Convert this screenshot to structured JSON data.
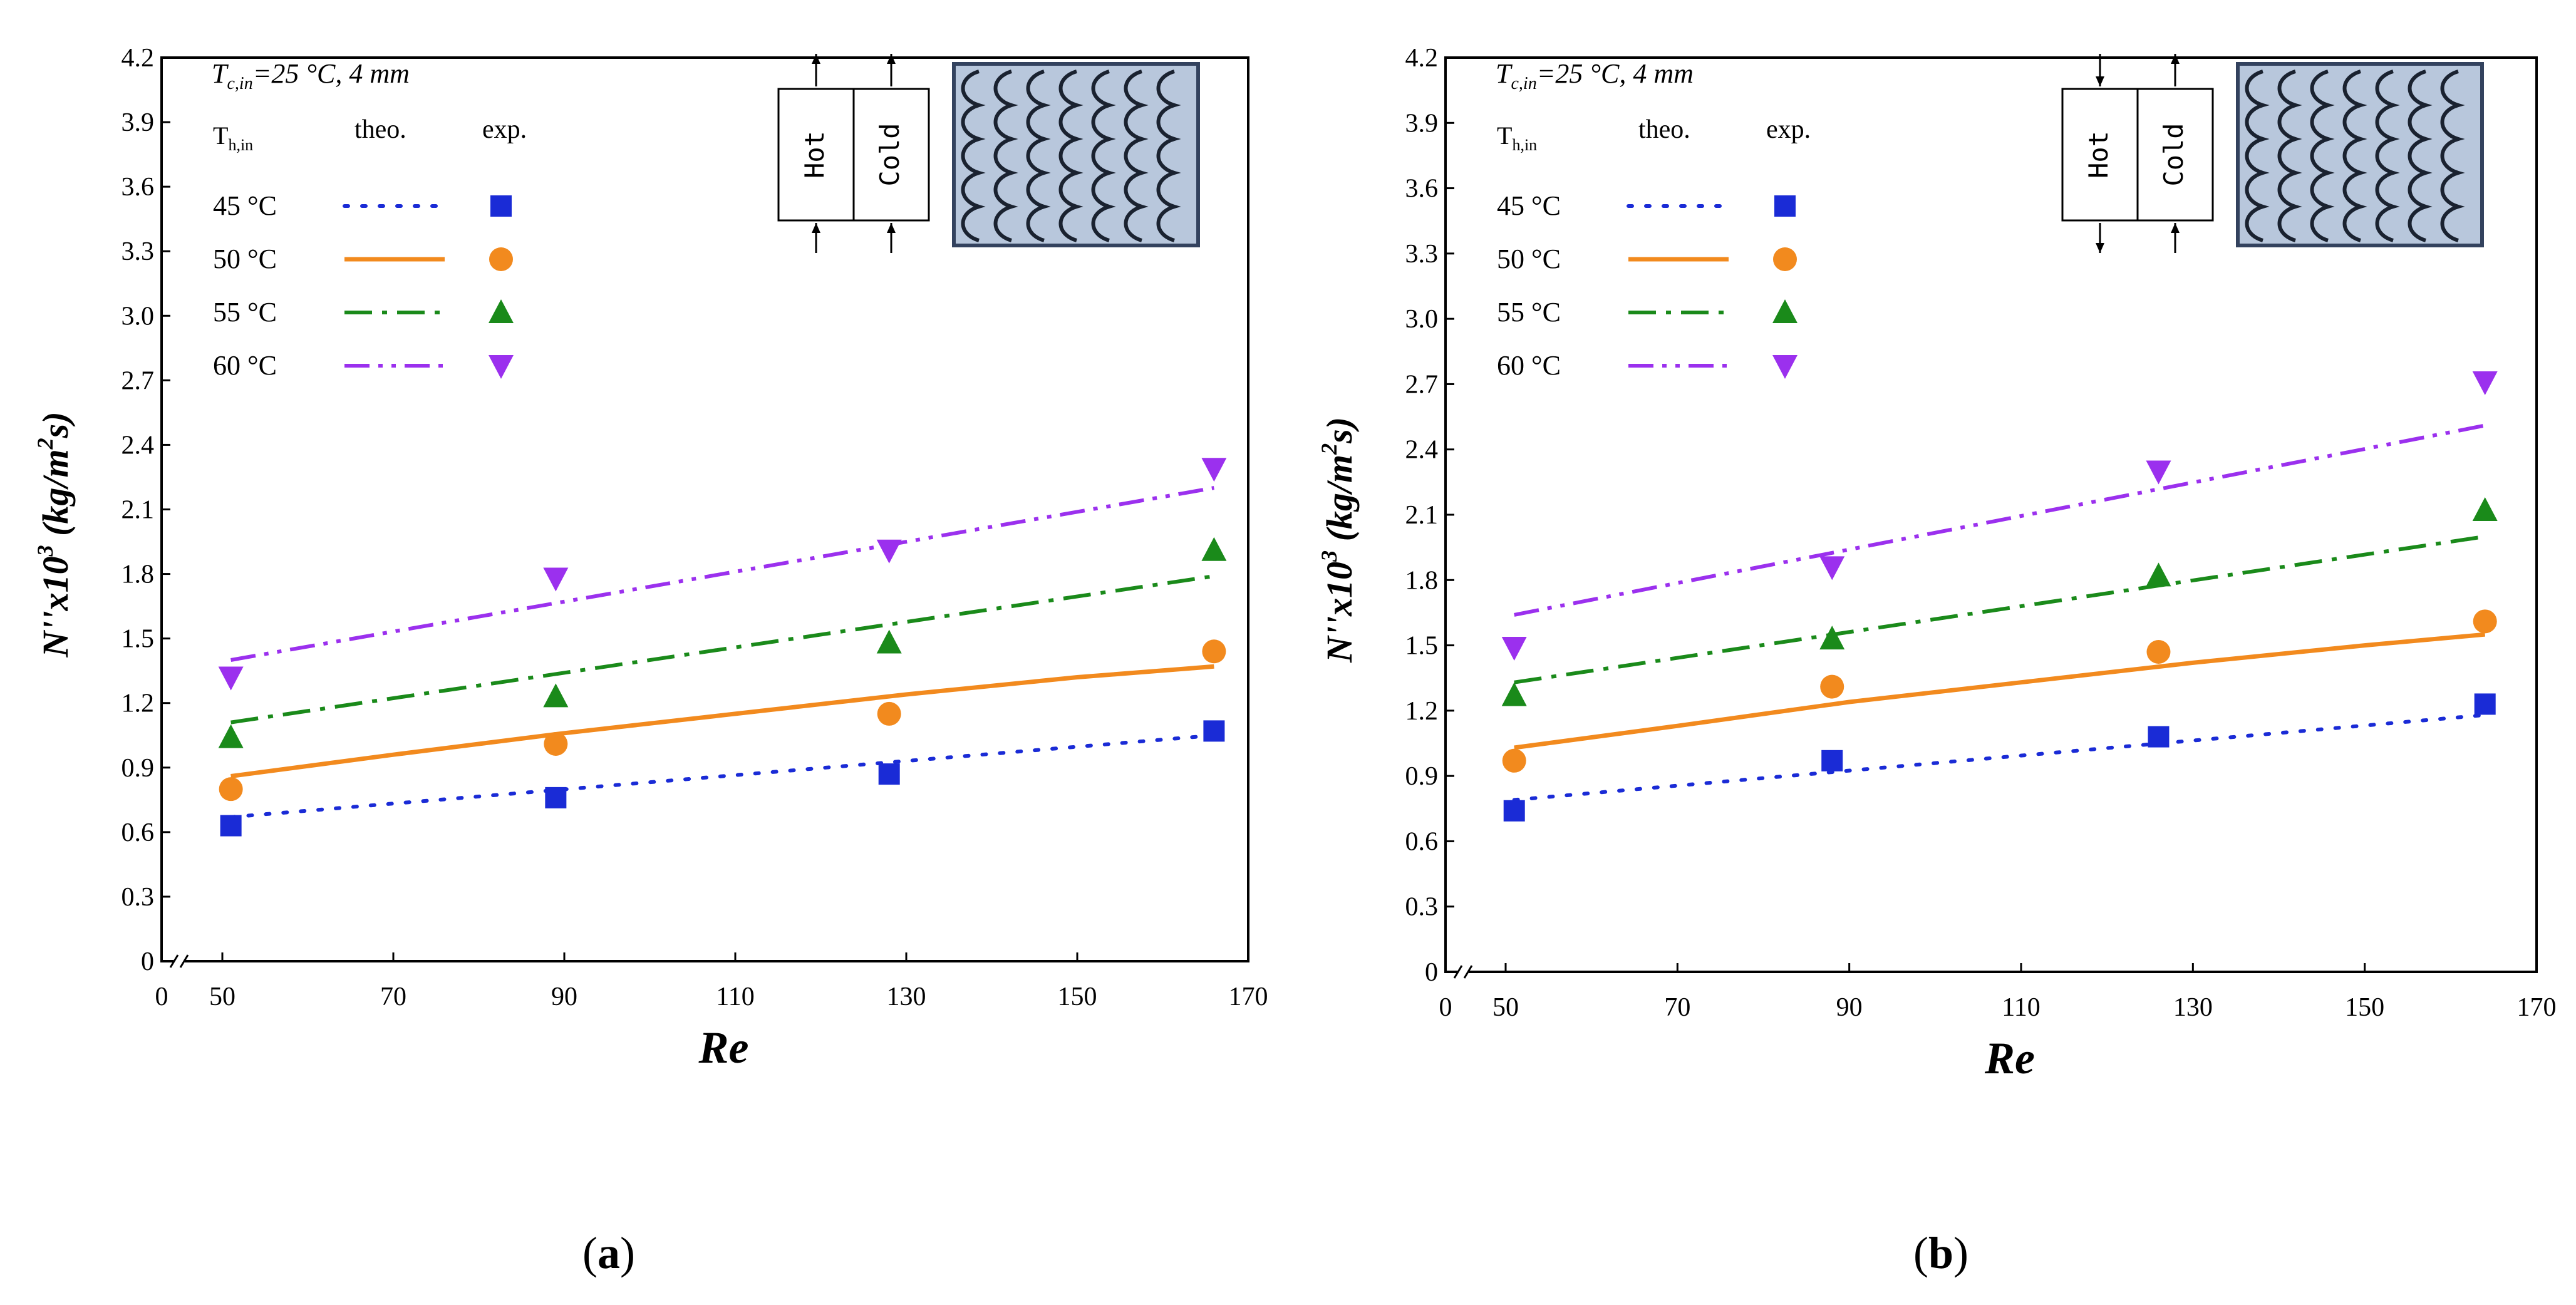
{
  "chart_data": [
    {
      "type": "line",
      "panel": "(a)",
      "caption_open": "(",
      "caption_letter": "a",
      "caption_close": ")",
      "annotation": "Tc,in=25 °C, 4 mm",
      "annotation_main": "T",
      "annotation_sub": "c,in",
      "annotation_rest": "=25 °C, 4 mm",
      "xlabel": "Re",
      "ylabel_main": "N''x10",
      "ylabel_sup": "3",
      "ylabel_unit_a": " (kg/m",
      "ylabel_unit_sup": "2",
      "ylabel_unit_b": "s)",
      "ylim": [
        0,
        4.2
      ],
      "xlim": [
        0,
        170
      ],
      "xbreak": "0 to 50",
      "xticks": [
        50,
        70,
        90,
        110,
        130,
        150,
        170
      ],
      "yticks": [
        0.3,
        0.6,
        0.9,
        1.2,
        1.5,
        1.8,
        2.1,
        2.4,
        2.7,
        3.0,
        3.3,
        3.6,
        3.9,
        4.2
      ],
      "ytick_labels": [
        "0.3",
        "0.6",
        "0.9",
        "1.2",
        "1.5",
        "1.8",
        "2.1",
        "2.4",
        "2.7",
        "3.0",
        "3.3",
        "3.6",
        "3.9",
        "4.2"
      ],
      "zero_label": "0",
      "legend_header": {
        "col1_main": "T",
        "col1_sub": "h,in",
        "col2": "theo.",
        "col3": "exp."
      },
      "inset": {
        "hot": "Hot",
        "cold": "Cold",
        "flow": "parallel"
      },
      "series": [
        {
          "name": "45 °C",
          "color": "#1a2bd6",
          "dash": "dot",
          "marker": "square",
          "theo": {
            "x": [
              51,
              166
            ],
            "y": [
              0.67,
              1.05
            ]
          },
          "exp": {
            "x": [
              51,
              89,
              128,
              166
            ],
            "y": [
              0.63,
              0.76,
              0.87,
              1.07
            ]
          }
        },
        {
          "name": "50 °C",
          "color": "#f28a1e",
          "dash": "solid",
          "marker": "circle",
          "theo": {
            "x": [
              51,
              70,
              90,
              110,
              130,
              150,
              166
            ],
            "y": [
              0.86,
              0.96,
              1.06,
              1.15,
              1.24,
              1.32,
              1.37
            ]
          },
          "exp": {
            "x": [
              51,
              89,
              128,
              166
            ],
            "y": [
              0.8,
              1.01,
              1.15,
              1.44
            ]
          }
        },
        {
          "name": "55 °C",
          "color": "#1a8a1a",
          "dash": "dashdot",
          "marker": "triangle-up",
          "theo": {
            "x": [
              51,
              166
            ],
            "y": [
              1.11,
              1.79
            ]
          },
          "exp": {
            "x": [
              51,
              89,
              128,
              166
            ],
            "y": [
              1.04,
              1.23,
              1.48,
              1.91
            ]
          }
        },
        {
          "name": "60 °C",
          "color": "#9b30ee",
          "dash": "dashdotdot",
          "marker": "triangle-down",
          "theo": {
            "x": [
              51,
              166
            ],
            "y": [
              1.4,
              2.2
            ]
          },
          "exp": {
            "x": [
              51,
              89,
              128,
              166
            ],
            "y": [
              1.32,
              1.78,
              1.91,
              2.29
            ]
          }
        }
      ]
    },
    {
      "type": "line",
      "panel": "(b)",
      "caption_open": "(",
      "caption_letter": "b",
      "caption_close": ")",
      "annotation": "Tc,in=25 °C, 4 mm",
      "annotation_main": "T",
      "annotation_sub": "c,in",
      "annotation_rest": "=25 °C, 4 mm",
      "xlabel": "Re",
      "ylabel_main": "N''x10",
      "ylabel_sup": "3",
      "ylabel_unit_a": " (kg/m",
      "ylabel_unit_sup": "2",
      "ylabel_unit_b": "s)",
      "ylim": [
        0,
        4.2
      ],
      "xlim": [
        0,
        170
      ],
      "xbreak": "0 to 50",
      "xticks": [
        50,
        70,
        90,
        110,
        130,
        150,
        170
      ],
      "yticks": [
        0.3,
        0.6,
        0.9,
        1.2,
        1.5,
        1.8,
        2.1,
        2.4,
        2.7,
        3.0,
        3.3,
        3.6,
        3.9,
        4.2
      ],
      "ytick_labels": [
        "0.3",
        "0.6",
        "0.9",
        "1.2",
        "1.5",
        "1.8",
        "2.1",
        "2.4",
        "2.7",
        "3.0",
        "3.3",
        "3.6",
        "3.9",
        "4.2"
      ],
      "zero_label": "0",
      "legend_header": {
        "col1_main": "T",
        "col1_sub": "h,in",
        "col2": "theo.",
        "col3": "exp."
      },
      "inset": {
        "hot": "Hot",
        "cold": "Cold",
        "flow": "counter"
      },
      "series": [
        {
          "name": "45 °C",
          "color": "#1a2bd6",
          "dash": "dot",
          "marker": "square",
          "theo": {
            "x": [
              51,
              164
            ],
            "y": [
              0.79,
              1.18
            ]
          },
          "exp": {
            "x": [
              51,
              88,
              126,
              164
            ],
            "y": [
              0.74,
              0.97,
              1.08,
              1.23
            ]
          }
        },
        {
          "name": "50 °C",
          "color": "#f28a1e",
          "dash": "solid",
          "marker": "circle",
          "theo": {
            "x": [
              51,
              70,
              90,
              110,
              130,
              150,
              164
            ],
            "y": [
              1.03,
              1.13,
              1.24,
              1.33,
              1.42,
              1.5,
              1.55
            ]
          },
          "exp": {
            "x": [
              51,
              88,
              126,
              164
            ],
            "y": [
              0.97,
              1.31,
              1.47,
              1.61
            ]
          }
        },
        {
          "name": "55 °C",
          "color": "#1a8a1a",
          "dash": "dashdot",
          "marker": "triangle-up",
          "theo": {
            "x": [
              51,
              164
            ],
            "y": [
              1.33,
              2.0
            ]
          },
          "exp": {
            "x": [
              51,
              88,
              126,
              164
            ],
            "y": [
              1.27,
              1.53,
              1.82,
              2.12
            ]
          }
        },
        {
          "name": "60 °C",
          "color": "#9b30ee",
          "dash": "dashdotdot",
          "marker": "triangle-down",
          "theo": {
            "x": [
              51,
              164
            ],
            "y": [
              1.64,
              2.51
            ]
          },
          "exp": {
            "x": [
              51,
              88,
              126,
              164
            ],
            "y": [
              1.49,
              1.86,
              2.3,
              2.71
            ]
          }
        }
      ]
    }
  ]
}
